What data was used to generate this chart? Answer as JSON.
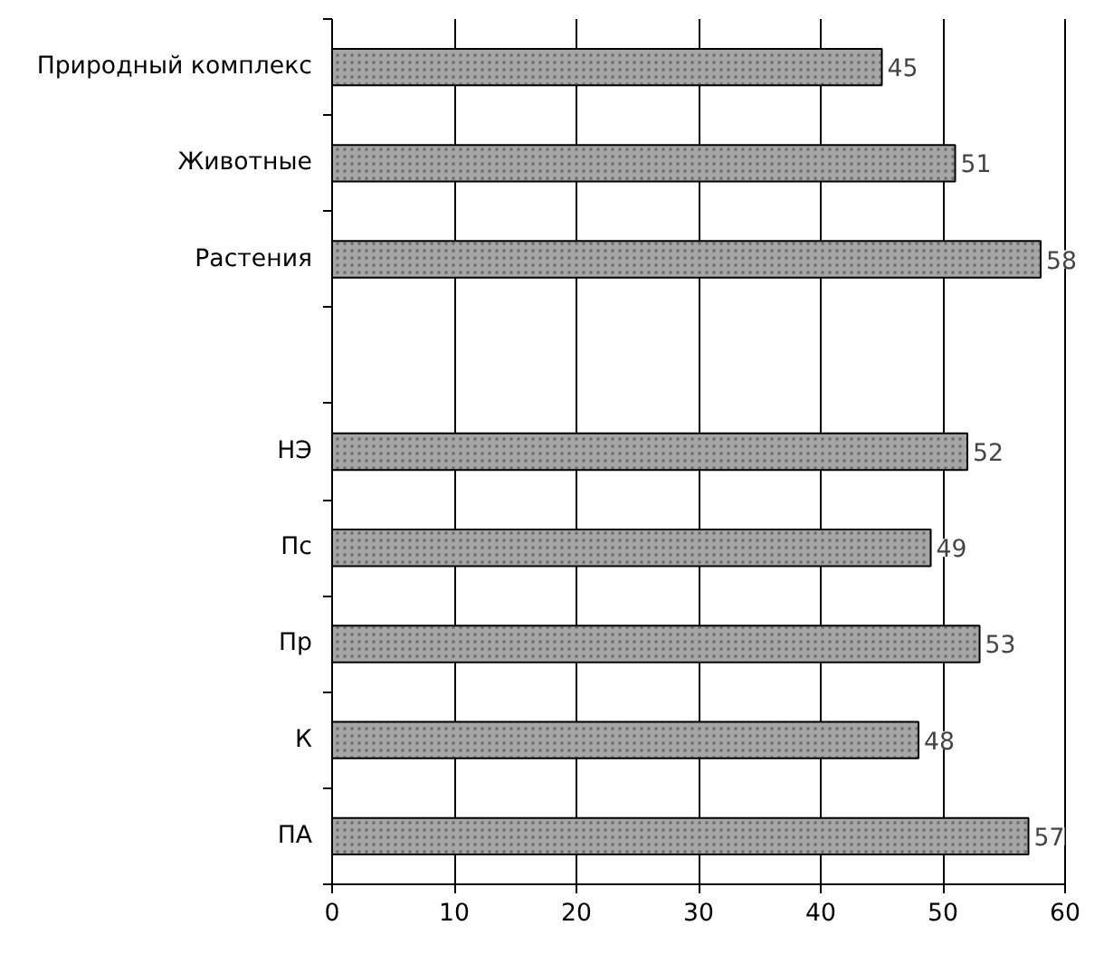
{
  "chart_data": {
    "type": "bar",
    "orientation": "horizontal",
    "categories": [
      "Природный комплекс",
      "Животные",
      "Растения",
      null,
      "НЭ",
      "Пс",
      "Пр",
      "К",
      "ПА"
    ],
    "values": [
      45,
      51,
      58,
      null,
      52,
      49,
      53,
      48,
      57
    ],
    "color": "#a6a6a6",
    "xlim": [
      0,
      60
    ],
    "xticks": [
      0,
      10,
      20,
      30,
      40,
      50,
      60
    ],
    "grid": "x",
    "data_labels": true
  }
}
